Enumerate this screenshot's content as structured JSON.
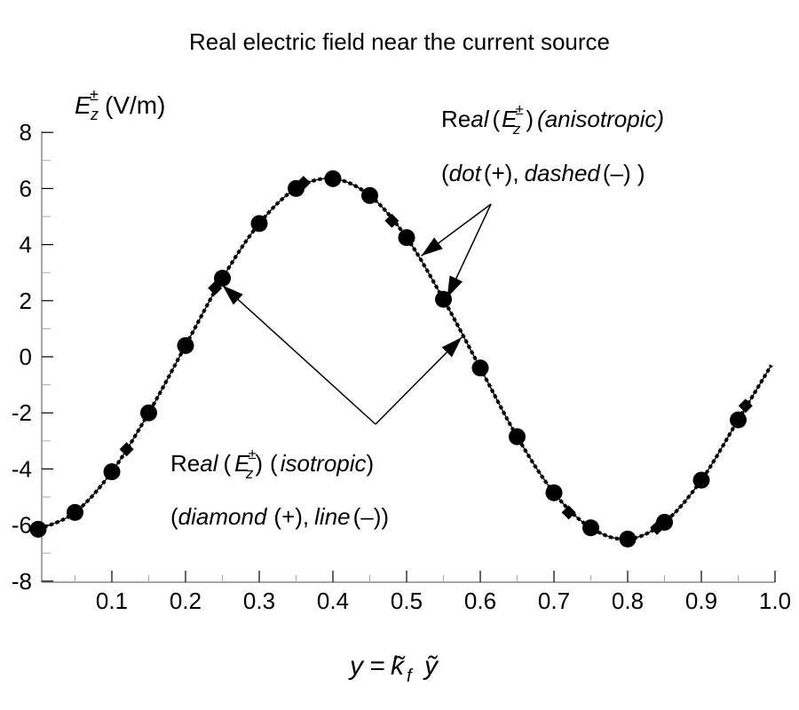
{
  "chart_data": {
    "type": "line",
    "title": "Real electric field near the current source",
    "ylabel": {
      "symbol": "E",
      "sup": "±",
      "sub": "z",
      "unit": "(V/m)"
    },
    "xlabel": {
      "y": "y",
      "eq": "=",
      "k": "k̃",
      "f": "f",
      "ytilde": "ỹ"
    },
    "xlim": [
      0,
      1.0
    ],
    "ylim": [
      -8,
      8
    ],
    "x_ticks": [
      0.1,
      0.2,
      0.3,
      0.4,
      0.5,
      0.6,
      0.7,
      0.8,
      0.9,
      1.0
    ],
    "x_tick_labels": [
      "0.1",
      "0.2",
      "0.3",
      "0.4",
      "0.5",
      "0.6",
      "0.7",
      "0.8",
      "0.9",
      "1.0"
    ],
    "y_ticks": [
      8,
      6,
      4,
      2,
      0,
      -2,
      -4,
      -6,
      -8
    ],
    "y_tick_labels": [
      "8",
      "6",
      "4",
      "2",
      "0",
      "-2",
      "-4",
      "-6",
      "-8"
    ],
    "grid": false,
    "series": [
      {
        "name": "anisotropic (+) dot",
        "marker": "dot",
        "x": [
          0.0,
          0.05,
          0.1,
          0.15,
          0.2,
          0.25,
          0.3,
          0.35,
          0.4,
          0.45,
          0.5,
          0.55,
          0.6,
          0.65,
          0.7,
          0.75,
          0.8,
          0.85,
          0.9,
          0.95
        ],
        "y": [
          -6.15,
          -5.55,
          -4.1,
          -2.0,
          0.4,
          2.8,
          4.75,
          6.0,
          6.35,
          5.75,
          4.25,
          2.05,
          -0.4,
          -2.85,
          -4.85,
          -6.1,
          -6.5,
          -5.9,
          -4.4,
          -2.25
        ]
      },
      {
        "name": "isotropic (+) diamond",
        "marker": "diamond",
        "x": [
          0.0,
          0.12,
          0.24,
          0.36,
          0.48,
          0.6,
          0.72,
          0.84,
          0.96
        ],
        "y": [
          -6.2,
          -3.3,
          2.45,
          6.2,
          4.85,
          -0.4,
          -5.55,
          -6.1,
          -1.75
        ]
      },
      {
        "name": "anisotropic (-) dashed",
        "style": "dashed",
        "x": [
          0.0,
          0.05,
          0.1,
          0.15,
          0.2,
          0.25,
          0.3,
          0.35,
          0.4,
          0.45,
          0.5,
          0.55,
          0.6,
          0.65,
          0.7,
          0.75,
          0.8,
          0.85,
          0.9,
          0.95,
          0.995
        ],
        "y": [
          -6.15,
          -5.55,
          -4.1,
          -2.0,
          0.4,
          2.8,
          4.75,
          6.0,
          6.35,
          5.75,
          4.25,
          2.05,
          -0.4,
          -2.85,
          -4.85,
          -6.1,
          -6.5,
          -5.9,
          -4.4,
          -2.25,
          -0.3
        ]
      },
      {
        "name": "isotropic (-) line",
        "style": "solid",
        "x": [
          0.0,
          0.05,
          0.1,
          0.15,
          0.2,
          0.25,
          0.3,
          0.35,
          0.4,
          0.45,
          0.5,
          0.55,
          0.6,
          0.65,
          0.7,
          0.75,
          0.8,
          0.85,
          0.9,
          0.95,
          0.995
        ],
        "y": [
          -6.15,
          -5.55,
          -4.1,
          -2.0,
          0.4,
          2.8,
          4.75,
          6.0,
          6.35,
          5.75,
          4.25,
          2.05,
          -0.4,
          -2.85,
          -4.85,
          -6.1,
          -6.5,
          -5.9,
          -4.4,
          -2.25,
          -0.3
        ]
      }
    ],
    "annotations": {
      "anisotropic": {
        "re": "Re",
        "al": "al",
        "open": "(",
        "E": "E",
        "sup": "±",
        "sub": "z",
        "close": ")",
        "kind": "(anisotropic)",
        "line2a": "(",
        "dot": "dot",
        "plus": "(+),",
        "dashed": "dashed",
        "minus": "(–) )",
        "arrow_targets": [
          [
            0.52,
            3.6
          ],
          [
            0.555,
            2.1
          ]
        ]
      },
      "isotropic": {
        "re": "Re",
        "al": "al",
        "open": "(",
        "E": "E",
        "sup": "±",
        "sub": "z",
        "close": ")",
        "kind_open": "(",
        "kind": "isotropic",
        "kind_close": ")",
        "line2a": "(",
        "diamond": "diamond",
        "plus": "(+),",
        "line": "line",
        "minus": "(–))",
        "arrow_targets": [
          [
            0.25,
            2.55
          ],
          [
            0.575,
            0.7
          ]
        ]
      }
    },
    "colors": {
      "ink": "#000000",
      "axis": "#888888",
      "background": "#ffffff"
    }
  }
}
